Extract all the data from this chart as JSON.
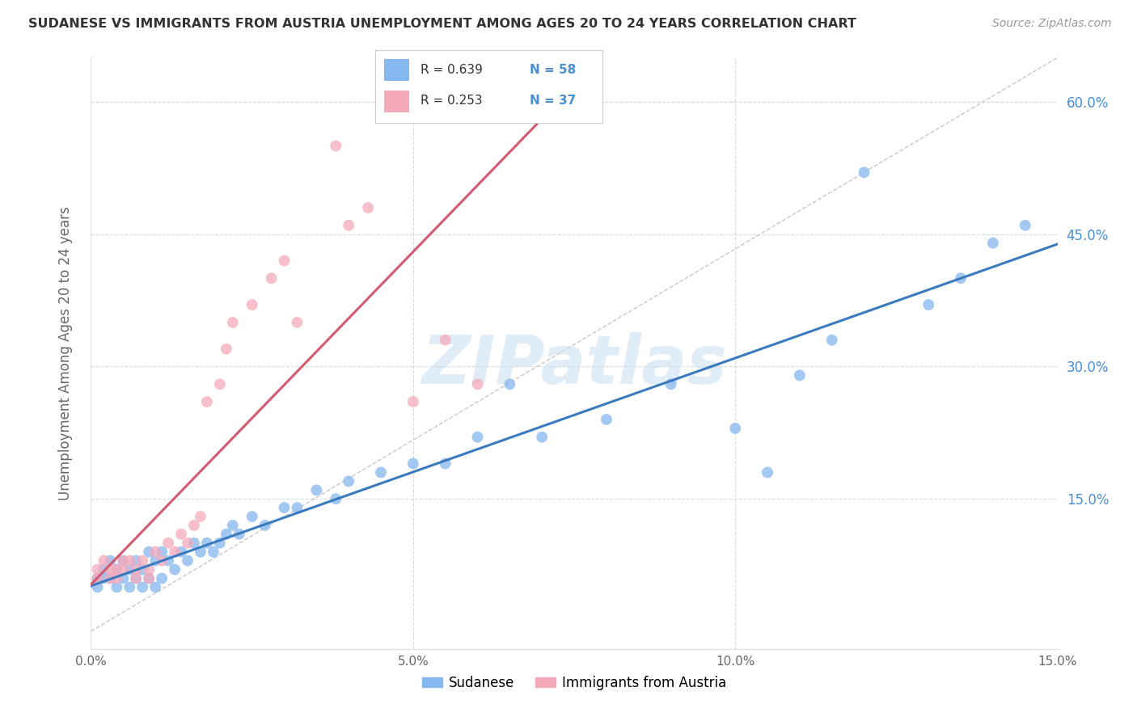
{
  "title": "SUDANESE VS IMMIGRANTS FROM AUSTRIA UNEMPLOYMENT AMONG AGES 20 TO 24 YEARS CORRELATION CHART",
  "source": "Source: ZipAtlas.com",
  "ylabel": "Unemployment Among Ages 20 to 24 years",
  "watermark": "ZIPatlas",
  "xlim": [
    0.0,
    0.15
  ],
  "ylim": [
    -0.02,
    0.65
  ],
  "yticks": [
    0.15,
    0.3,
    0.45,
    0.6
  ],
  "ytick_labels": [
    "15.0%",
    "30.0%",
    "45.0%",
    "60.0%"
  ],
  "xticks": [
    0.0,
    0.05,
    0.1,
    0.15
  ],
  "xtick_labels": [
    "0.0%",
    "5.0%",
    "10.0%",
    "15.0%"
  ],
  "blue_R": 0.639,
  "blue_N": 58,
  "pink_R": 0.253,
  "pink_N": 37,
  "blue_color": "#85b8ee",
  "pink_color": "#f5aabb",
  "blue_line_color": "#3a7abf",
  "pink_line_color": "#d45a72",
  "legend1_label": "Sudanese",
  "legend2_label": "Immigrants from Austria",
  "blue_scatter_x": [
    0.001,
    0.001,
    0.002,
    0.002,
    0.003,
    0.003,
    0.004,
    0.004,
    0.005,
    0.005,
    0.006,
    0.006,
    0.007,
    0.007,
    0.008,
    0.008,
    0.009,
    0.009,
    0.01,
    0.01,
    0.011,
    0.011,
    0.012,
    0.013,
    0.014,
    0.015,
    0.016,
    0.017,
    0.018,
    0.019,
    0.02,
    0.021,
    0.022,
    0.023,
    0.025,
    0.027,
    0.03,
    0.032,
    0.035,
    0.038,
    0.04,
    0.045,
    0.05,
    0.055,
    0.06,
    0.065,
    0.07,
    0.08,
    0.09,
    0.1,
    0.105,
    0.11,
    0.115,
    0.12,
    0.13,
    0.135,
    0.14,
    0.145
  ],
  "blue_scatter_y": [
    0.06,
    0.05,
    0.07,
    0.06,
    0.08,
    0.06,
    0.07,
    0.05,
    0.08,
    0.06,
    0.07,
    0.05,
    0.08,
    0.06,
    0.07,
    0.05,
    0.09,
    0.06,
    0.08,
    0.05,
    0.09,
    0.06,
    0.08,
    0.07,
    0.09,
    0.08,
    0.1,
    0.09,
    0.1,
    0.09,
    0.1,
    0.11,
    0.12,
    0.11,
    0.13,
    0.12,
    0.14,
    0.14,
    0.16,
    0.15,
    0.17,
    0.18,
    0.19,
    0.19,
    0.22,
    0.28,
    0.22,
    0.24,
    0.28,
    0.23,
    0.18,
    0.29,
    0.33,
    0.52,
    0.37,
    0.4,
    0.44,
    0.46
  ],
  "pink_scatter_x": [
    0.001,
    0.001,
    0.002,
    0.003,
    0.003,
    0.004,
    0.004,
    0.005,
    0.005,
    0.006,
    0.007,
    0.007,
    0.008,
    0.009,
    0.009,
    0.01,
    0.011,
    0.012,
    0.013,
    0.014,
    0.015,
    0.016,
    0.017,
    0.018,
    0.02,
    0.021,
    0.022,
    0.025,
    0.028,
    0.03,
    0.032,
    0.038,
    0.04,
    0.043,
    0.05,
    0.055,
    0.06
  ],
  "pink_scatter_y": [
    0.07,
    0.06,
    0.08,
    0.06,
    0.07,
    0.07,
    0.06,
    0.08,
    0.07,
    0.08,
    0.07,
    0.06,
    0.08,
    0.06,
    0.07,
    0.09,
    0.08,
    0.1,
    0.09,
    0.11,
    0.1,
    0.12,
    0.13,
    0.26,
    0.28,
    0.32,
    0.35,
    0.37,
    0.4,
    0.42,
    0.35,
    0.55,
    0.46,
    0.48,
    0.26,
    0.33,
    0.28
  ],
  "title_color": "#333333",
  "axis_color": "#666666",
  "grid_color": "#d0dde8",
  "background_color": "#ffffff",
  "source_color": "#999999",
  "blue_trend_x_end": 0.15,
  "pink_trend_x_end": 0.07
}
